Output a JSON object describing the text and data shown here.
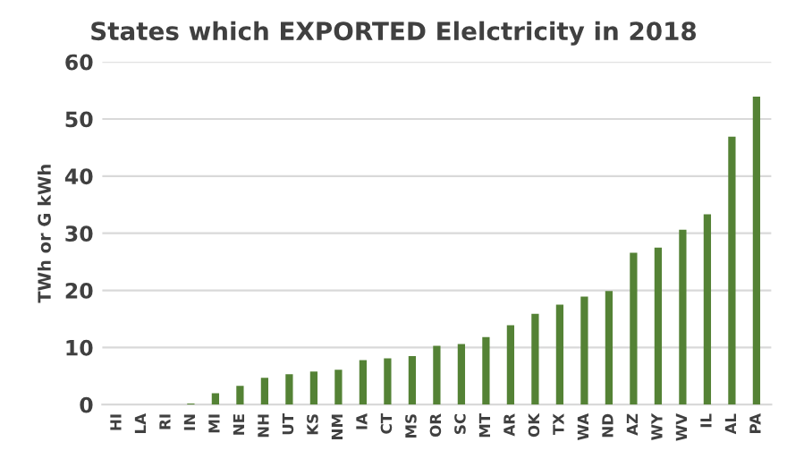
{
  "chart_data": {
    "type": "bar",
    "title": "States which EXPORTED Elelctricity in 2018",
    "ylabel": "TWh or G kWh",
    "categories": [
      "HI",
      "LA",
      "RI",
      "IN",
      "MI",
      "NE",
      "NH",
      "UT",
      "KS",
      "NM",
      "IA",
      "CT",
      "MS",
      "OR",
      "SC",
      "MT",
      "AR",
      "OK",
      "TX",
      "WA",
      "ND",
      "AZ",
      "WY",
      "WV",
      "IL",
      "AL",
      "PA"
    ],
    "values": [
      0,
      0,
      0,
      0.2,
      2.0,
      3.3,
      4.7,
      5.3,
      5.8,
      6.1,
      7.8,
      8.1,
      8.5,
      10.3,
      10.6,
      11.8,
      13.9,
      15.9,
      17.5,
      18.9,
      19.9,
      26.6,
      27.5,
      30.6,
      33.3,
      46.9,
      53.9
    ],
    "color": "#548235",
    "ylim": [
      0,
      60
    ],
    "yticks": [
      0,
      10,
      20,
      30,
      40,
      50,
      60
    ],
    "grid": "y",
    "legend": false
  }
}
